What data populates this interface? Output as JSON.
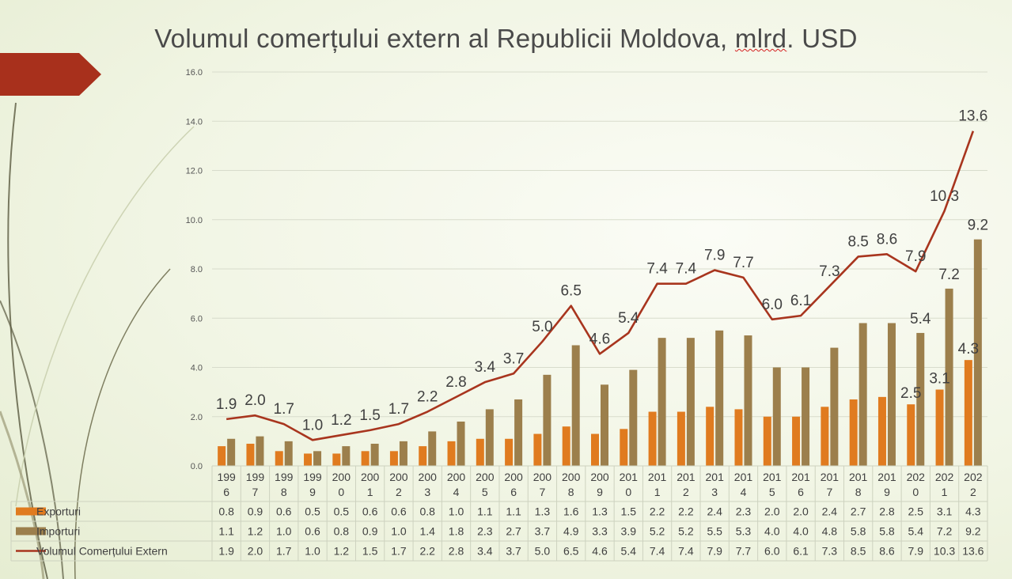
{
  "title_part1": "Volumul comerțului extern al Republicii Moldova, ",
  "title_part2": "mlrd",
  "title_part3": ". USD",
  "colors": {
    "exports": "#e07b1f",
    "imports": "#9c7f4c",
    "total": "#a8351e",
    "accent_arrow": "#a8301c",
    "grid": "#d8dccc",
    "decor_line": "#6b6a4a"
  },
  "chart_data": {
    "type": "bar",
    "title": "Volumul comerțului extern al Republicii Moldova, mlrd. USD",
    "categories": [
      [
        "199",
        "6"
      ],
      [
        "199",
        "7"
      ],
      [
        "199",
        "8"
      ],
      [
        "199",
        "9"
      ],
      [
        "200",
        "0"
      ],
      [
        "200",
        "1"
      ],
      [
        "200",
        "2"
      ],
      [
        "200",
        "3"
      ],
      [
        "200",
        "4"
      ],
      [
        "200",
        "5"
      ],
      [
        "200",
        "6"
      ],
      [
        "200",
        "7"
      ],
      [
        "200",
        "8"
      ],
      [
        "200",
        "9"
      ],
      [
        "201",
        "0"
      ],
      [
        "201",
        "1"
      ],
      [
        "201",
        "2"
      ],
      [
        "201",
        "3"
      ],
      [
        "201",
        "4"
      ],
      [
        "201",
        "5"
      ],
      [
        "201",
        "6"
      ],
      [
        "201",
        "7"
      ],
      [
        "201",
        "8"
      ],
      [
        "201",
        "9"
      ],
      [
        "202",
        "0"
      ],
      [
        "202",
        "1"
      ],
      [
        "202",
        "2"
      ]
    ],
    "yticks": [
      "0.0",
      "2.0",
      "4.0",
      "6.0",
      "8.0",
      "10.0",
      "12.0",
      "14.0",
      "16.0"
    ],
    "ylim": [
      0,
      16
    ],
    "grid": true,
    "legend_placement": "data-table",
    "series": [
      {
        "name": "Exporturi",
        "kind": "bar",
        "values": [
          0.8,
          0.9,
          0.6,
          0.5,
          0.5,
          0.6,
          0.6,
          0.8,
          1.0,
          1.1,
          1.1,
          1.3,
          1.6,
          1.3,
          1.5,
          2.2,
          2.2,
          2.4,
          2.3,
          2.0,
          2.0,
          2.4,
          2.7,
          2.8,
          2.5,
          3.1,
          4.3
        ],
        "labels": [
          "0.8",
          "0.9",
          "0.6",
          "0.5",
          "0.5",
          "0.6",
          "0.6",
          "0.8",
          "1.0",
          "1.1",
          "1.1",
          "1.3",
          "1.6",
          "1.3",
          "1.5",
          "2.2",
          "2.2",
          "2.4",
          "2.3",
          "2.0",
          "2.0",
          "2.4",
          "2.7",
          "2.8",
          "2.5",
          "3.1",
          "4.3"
        ],
        "point_labels": {
          "24": "2.5",
          "25": "3.1",
          "26": "4.3"
        }
      },
      {
        "name": "Importuri",
        "kind": "bar",
        "values": [
          1.1,
          1.2,
          1.0,
          0.6,
          0.8,
          0.9,
          1.0,
          1.4,
          1.8,
          2.3,
          2.7,
          3.7,
          4.9,
          3.3,
          3.9,
          5.2,
          5.2,
          5.5,
          5.3,
          4.0,
          4.0,
          4.8,
          5.8,
          5.8,
          5.4,
          7.2,
          9.2
        ],
        "labels": [
          "1.1",
          "1.2",
          "1.0",
          "0.6",
          "0.8",
          "0.9",
          "1.0",
          "1.4",
          "1.8",
          "2.3",
          "2.7",
          "3.7",
          "4.9",
          "3.3",
          "3.9",
          "5.2",
          "5.2",
          "5.5",
          "5.3",
          "4.0",
          "4.0",
          "4.8",
          "5.8",
          "5.8",
          "5.4",
          "7.2",
          "9.2"
        ],
        "point_labels": {
          "24": "5.4",
          "25": "7.2",
          "26": "9.2"
        }
      },
      {
        "name": "Volumul Comerțului Extern",
        "kind": "line",
        "values": [
          1.9,
          2.05,
          1.7,
          1.05,
          1.25,
          1.45,
          1.7,
          2.2,
          2.8,
          3.4,
          3.75,
          5.05,
          6.5,
          4.55,
          5.4,
          7.4,
          7.4,
          7.95,
          7.65,
          5.95,
          6.1,
          7.3,
          8.5,
          8.6,
          7.9,
          10.35,
          13.6
        ],
        "labels": [
          "1.9",
          "2.0",
          "1.7",
          "1.0",
          "1.2",
          "1.5",
          "1.7",
          "2.2",
          "2.8",
          "3.4",
          "3.7",
          "5.0",
          "6.5",
          "4.6",
          "5.4",
          "7.4",
          "7.4",
          "7.9",
          "7.7",
          "6.0",
          "6.1",
          "7.3",
          "8.5",
          "8.6",
          "7.9",
          "10.3",
          "13.6"
        ]
      }
    ]
  }
}
